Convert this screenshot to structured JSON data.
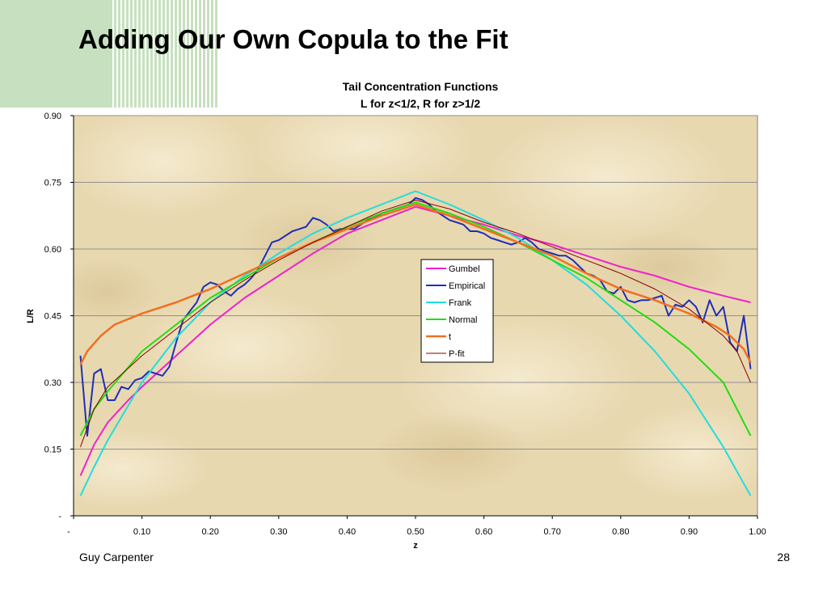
{
  "slide": {
    "title": "Adding Our Own Copula to the Fit",
    "footer_left": "Guy Carpenter",
    "page_number": "28"
  },
  "chart_data": {
    "type": "line",
    "title": "Tail Concentration Functions",
    "subtitle": "L for z<1/2, R for z>1/2",
    "xlabel": "z",
    "ylabel": "L/R",
    "xlim": [
      0,
      1
    ],
    "ylim": [
      0,
      0.9
    ],
    "x_ticks": [
      0,
      0.1,
      0.2,
      0.3,
      0.4,
      0.5,
      0.6,
      0.7,
      0.8,
      0.9,
      1.0
    ],
    "x_tick_labels": [
      "-",
      "0.10",
      "0.20",
      "0.30",
      "0.40",
      "0.50",
      "0.60",
      "0.70",
      "0.80",
      "0.90",
      "1.00"
    ],
    "y_ticks": [
      0,
      0.15,
      0.3,
      0.45,
      0.6,
      0.75,
      0.9
    ],
    "y_tick_labels": [
      "-",
      "0.15",
      "0.30",
      "0.45",
      "0.60",
      "0.75",
      "0.90"
    ],
    "grid": "horizontal",
    "legend_position": "center-right",
    "series": [
      {
        "name": "Gumbel",
        "color": "#ee22cc",
        "width": 2,
        "x": [
          0.01,
          0.03,
          0.05,
          0.08,
          0.1,
          0.15,
          0.2,
          0.25,
          0.3,
          0.35,
          0.4,
          0.45,
          0.5,
          0.55,
          0.6,
          0.65,
          0.7,
          0.75,
          0.8,
          0.85,
          0.9,
          0.95,
          0.99
        ],
        "y": [
          0.09,
          0.16,
          0.21,
          0.26,
          0.29,
          0.36,
          0.43,
          0.49,
          0.54,
          0.59,
          0.635,
          0.665,
          0.695,
          0.675,
          0.655,
          0.63,
          0.61,
          0.585,
          0.56,
          0.54,
          0.515,
          0.495,
          0.48
        ]
      },
      {
        "name": "Empirical",
        "color": "#1f2fb4",
        "width": 2,
        "x": [
          0.01,
          0.02,
          0.03,
          0.04,
          0.05,
          0.06,
          0.07,
          0.08,
          0.09,
          0.1,
          0.11,
          0.12,
          0.13,
          0.14,
          0.15,
          0.16,
          0.17,
          0.18,
          0.19,
          0.2,
          0.21,
          0.22,
          0.23,
          0.24,
          0.25,
          0.26,
          0.27,
          0.28,
          0.29,
          0.3,
          0.31,
          0.32,
          0.33,
          0.34,
          0.35,
          0.36,
          0.37,
          0.38,
          0.39,
          0.4,
          0.41,
          0.42,
          0.43,
          0.44,
          0.45,
          0.46,
          0.47,
          0.48,
          0.49,
          0.5,
          0.51,
          0.52,
          0.53,
          0.54,
          0.55,
          0.56,
          0.57,
          0.58,
          0.59,
          0.6,
          0.61,
          0.62,
          0.63,
          0.64,
          0.65,
          0.66,
          0.67,
          0.68,
          0.69,
          0.7,
          0.71,
          0.72,
          0.73,
          0.74,
          0.75,
          0.76,
          0.77,
          0.78,
          0.79,
          0.8,
          0.81,
          0.82,
          0.83,
          0.84,
          0.85,
          0.86,
          0.87,
          0.88,
          0.89,
          0.9,
          0.91,
          0.92,
          0.93,
          0.94,
          0.95,
          0.96,
          0.97,
          0.98,
          0.99
        ],
        "y": [
          0.36,
          0.18,
          0.32,
          0.33,
          0.26,
          0.26,
          0.29,
          0.285,
          0.305,
          0.31,
          0.325,
          0.32,
          0.315,
          0.335,
          0.39,
          0.44,
          0.46,
          0.48,
          0.515,
          0.525,
          0.52,
          0.505,
          0.495,
          0.51,
          0.52,
          0.535,
          0.555,
          0.585,
          0.615,
          0.62,
          0.63,
          0.64,
          0.645,
          0.65,
          0.67,
          0.665,
          0.655,
          0.64,
          0.645,
          0.645,
          0.645,
          0.655,
          0.665,
          0.67,
          0.68,
          0.685,
          0.69,
          0.695,
          0.7,
          0.715,
          0.71,
          0.7,
          0.685,
          0.675,
          0.665,
          0.66,
          0.655,
          0.64,
          0.64,
          0.635,
          0.625,
          0.62,
          0.615,
          0.61,
          0.615,
          0.625,
          0.615,
          0.6,
          0.595,
          0.59,
          0.585,
          0.585,
          0.575,
          0.56,
          0.545,
          0.54,
          0.53,
          0.505,
          0.5,
          0.515,
          0.485,
          0.48,
          0.485,
          0.485,
          0.49,
          0.495,
          0.45,
          0.475,
          0.47,
          0.485,
          0.47,
          0.435,
          0.485,
          0.45,
          0.47,
          0.39,
          0.37,
          0.45,
          0.33
        ]
      },
      {
        "name": "Frank",
        "color": "#22dddd",
        "width": 2,
        "x": [
          0.01,
          0.03,
          0.05,
          0.1,
          0.15,
          0.2,
          0.25,
          0.3,
          0.35,
          0.4,
          0.45,
          0.5,
          0.55,
          0.6,
          0.65,
          0.7,
          0.75,
          0.8,
          0.85,
          0.9,
          0.95,
          0.99
        ],
        "y": [
          0.045,
          0.11,
          0.17,
          0.3,
          0.4,
          0.48,
          0.54,
          0.59,
          0.635,
          0.67,
          0.7,
          0.73,
          0.7,
          0.665,
          0.625,
          0.575,
          0.52,
          0.45,
          0.37,
          0.275,
          0.155,
          0.045
        ]
      },
      {
        "name": "Normal",
        "color": "#22dd11",
        "width": 2,
        "x": [
          0.01,
          0.03,
          0.05,
          0.1,
          0.15,
          0.2,
          0.25,
          0.3,
          0.35,
          0.4,
          0.45,
          0.5,
          0.55,
          0.6,
          0.65,
          0.7,
          0.75,
          0.8,
          0.85,
          0.9,
          0.95,
          0.99
        ],
        "y": [
          0.18,
          0.24,
          0.28,
          0.37,
          0.43,
          0.49,
          0.535,
          0.58,
          0.615,
          0.65,
          0.68,
          0.705,
          0.68,
          0.65,
          0.615,
          0.575,
          0.535,
          0.485,
          0.435,
          0.375,
          0.3,
          0.18
        ]
      },
      {
        "name": "t",
        "color": "#f07020",
        "width": 2.5,
        "x": [
          0.01,
          0.02,
          0.04,
          0.06,
          0.1,
          0.15,
          0.2,
          0.25,
          0.3,
          0.35,
          0.4,
          0.45,
          0.5,
          0.55,
          0.6,
          0.65,
          0.7,
          0.75,
          0.8,
          0.85,
          0.9,
          0.94,
          0.96,
          0.98,
          0.99
        ],
        "y": [
          0.34,
          0.37,
          0.405,
          0.43,
          0.455,
          0.48,
          0.51,
          0.545,
          0.58,
          0.615,
          0.645,
          0.675,
          0.7,
          0.675,
          0.645,
          0.615,
          0.585,
          0.545,
          0.51,
          0.485,
          0.455,
          0.425,
          0.405,
          0.375,
          0.345
        ]
      },
      {
        "name": "P-fit",
        "color": "#880000",
        "width": 1,
        "x": [
          0.01,
          0.03,
          0.05,
          0.1,
          0.15,
          0.2,
          0.25,
          0.3,
          0.35,
          0.4,
          0.45,
          0.5,
          0.55,
          0.6,
          0.65,
          0.7,
          0.75,
          0.8,
          0.85,
          0.9,
          0.95,
          0.97,
          0.99
        ],
        "y": [
          0.155,
          0.24,
          0.29,
          0.36,
          0.42,
          0.48,
          0.53,
          0.575,
          0.615,
          0.65,
          0.685,
          0.71,
          0.69,
          0.66,
          0.635,
          0.605,
          0.575,
          0.545,
          0.51,
          0.465,
          0.405,
          0.37,
          0.3
        ]
      }
    ]
  }
}
